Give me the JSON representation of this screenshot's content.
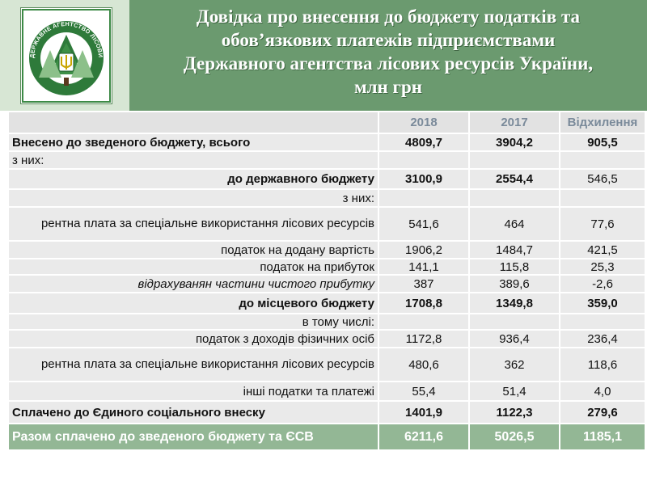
{
  "title_lines": [
    "Довідка про внесення до бюджету податків та",
    "обов’язкових платежів підприємствами",
    "Державного агентства лісових ресурсів України,",
    "млн грн"
  ],
  "logo": {
    "text": "ДЕРЖАВНЕ АГЕНТСТВО ЛІСОВИХ РЕСУРСІВ УКРАЇНИ",
    "icon": "trident-on-fir-trees-emblem",
    "colors": {
      "green": "#2e7a3a",
      "light": "#8cc08a"
    }
  },
  "colors": {
    "header_green": "#6b9a6f",
    "total_green": "#93b795",
    "cell_gray": "#eaeaea"
  },
  "table": {
    "columns": [
      "",
      "2018",
      "2017",
      "Відхилення"
    ],
    "rows": [
      {
        "label": "Внесено до зведеного бюджету, всього",
        "v2018": "4809,7",
        "v2017": "3904,2",
        "dev": "905,5"
      },
      {
        "label": "з них:",
        "v2018": "",
        "v2017": "",
        "dev": ""
      },
      {
        "label": "до державного бюджету",
        "v2018": "3100,9",
        "v2017": "2554,4",
        "dev": "546,5"
      },
      {
        "label": "з них:",
        "v2018": "",
        "v2017": "",
        "dev": ""
      },
      {
        "label": "рентна плата за спеціальне використання лісових ресурсів",
        "v2018": "541,6",
        "v2017": "464",
        "dev": "77,6"
      },
      {
        "label": "податок на додану вартість",
        "v2018": "1906,2",
        "v2017": "1484,7",
        "dev": "421,5"
      },
      {
        "label": "податок на прибуток",
        "v2018": "141,1",
        "v2017": "115,8",
        "dev": "25,3"
      },
      {
        "label": "відрахуванян частини чистого прибутку",
        "v2018": "387",
        "v2017": "389,6",
        "dev": "-2,6"
      },
      {
        "label": "до місцевого бюджету",
        "v2018": "1708,8",
        "v2017": "1349,8",
        "dev": "359,0"
      },
      {
        "label": "в тому числі:",
        "v2018": "",
        "v2017": "",
        "dev": ""
      },
      {
        "label": "податок з доходів фізичних осіб",
        "v2018": "1172,8",
        "v2017": "936,4",
        "dev": "236,4"
      },
      {
        "label": "рентна плата за спеціальне використання лісових ресурсів",
        "v2018": "480,6",
        "v2017": "362",
        "dev": "118,6"
      },
      {
        "label": "інші податки та платежі",
        "v2018": "55,4",
        "v2017": "51,4",
        "dev": "4,0"
      },
      {
        "label": "Сплачено до Єдиного соціального внеску",
        "v2018": "1401,9",
        "v2017": "1122,3",
        "dev": "279,6"
      },
      {
        "label": "Разом сплачено до зведеного бюджету та ЄСВ",
        "v2018": "6211,6",
        "v2017": "5026,5",
        "dev": "1185,1"
      }
    ]
  }
}
